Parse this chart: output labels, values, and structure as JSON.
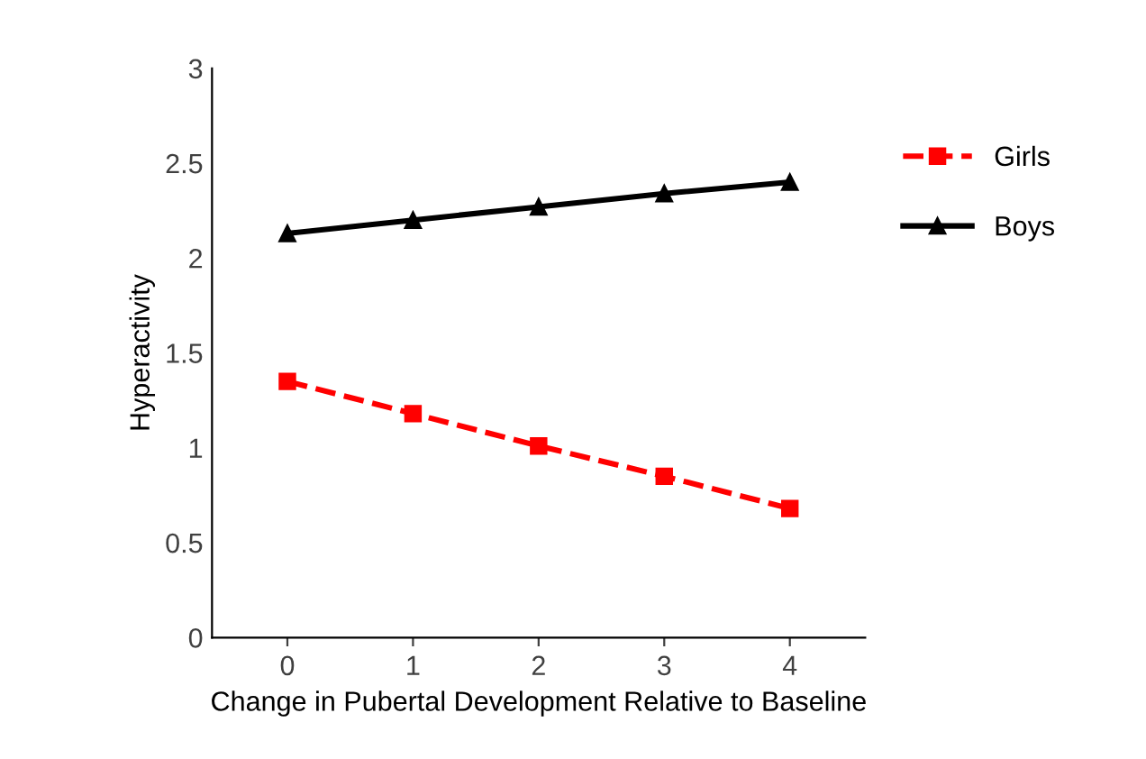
{
  "chart_data": {
    "type": "line",
    "xlabel": "Change in Pubertal Development Relative to Baseline",
    "ylabel": "Hyperactivity",
    "categories": [
      "0",
      "1",
      "2",
      "3",
      "4"
    ],
    "series": [
      {
        "name": "Girls",
        "color": "#ff0000",
        "marker": "square",
        "line_style": "dashed",
        "values": [
          1.35,
          1.18,
          1.01,
          0.85,
          0.68
        ]
      },
      {
        "name": "Boys",
        "color": "#000000",
        "marker": "triangle",
        "line_style": "solid",
        "values": [
          2.13,
          2.2,
          2.27,
          2.34,
          2.4
        ]
      }
    ],
    "ylim": [
      0,
      3
    ],
    "yticks": [
      0,
      0.5,
      1,
      1.5,
      2,
      2.5,
      3
    ],
    "grid": false,
    "legend": "right"
  }
}
